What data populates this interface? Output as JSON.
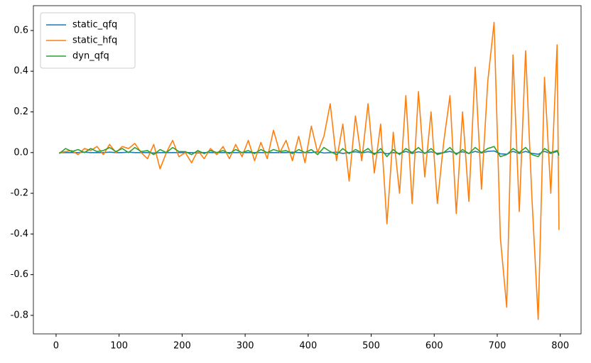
{
  "chart_data": {
    "type": "line",
    "x": [
      5,
      15,
      25,
      35,
      45,
      55,
      65,
      75,
      85,
      95,
      105,
      115,
      125,
      135,
      145,
      155,
      165,
      175,
      185,
      195,
      205,
      215,
      225,
      235,
      245,
      255,
      265,
      275,
      285,
      295,
      305,
      315,
      325,
      335,
      345,
      355,
      365,
      375,
      385,
      395,
      405,
      415,
      425,
      435,
      445,
      455,
      465,
      475,
      485,
      495,
      505,
      515,
      525,
      535,
      545,
      555,
      565,
      575,
      585,
      595,
      605,
      615,
      625,
      635,
      645,
      655,
      665,
      675,
      685,
      695,
      705,
      715,
      725,
      735,
      745,
      755,
      765,
      775,
      785,
      795,
      798
    ],
    "series": [
      {
        "name": "static_qfq",
        "color": "#1f77b4",
        "values": [
          0,
          0,
          0,
          0,
          0.002,
          0,
          0,
          0,
          0.002,
          0,
          0,
          0.002,
          0,
          0,
          0,
          -0.002,
          0,
          0,
          0,
          0,
          0,
          0,
          -0.002,
          0,
          0,
          0,
          0,
          0,
          0,
          0,
          0,
          0,
          0,
          0,
          0,
          0,
          0,
          0.002,
          0,
          0,
          0,
          0.004,
          -0.002,
          0,
          0.002,
          -0.004,
          0,
          0.004,
          -0.002,
          0.004,
          -0.004,
          0.002,
          -0.006,
          0,
          -0.004,
          0.006,
          -0.004,
          0.004,
          -0.002,
          0.004,
          -0.004,
          0,
          0.006,
          -0.004,
          0.004,
          -0.004,
          0.006,
          -0.002,
          0.006,
          0.008,
          -0.006,
          -0.008,
          0.006,
          -0.004,
          0.006,
          -0.004,
          -0.008,
          0.006,
          -0.004,
          0.006,
          -0.006
        ]
      },
      {
        "name": "static_hfq",
        "color": "#ff7f0e",
        "values": [
          0,
          0.005,
          0.01,
          -0.01,
          0.02,
          0.01,
          0.03,
          -0.01,
          0.04,
          0.0,
          0.03,
          0.02,
          0.045,
          0.0,
          -0.03,
          0.04,
          -0.08,
          0.0,
          0.06,
          -0.02,
          0.0,
          -0.05,
          0.01,
          -0.03,
          0.02,
          -0.01,
          0.03,
          -0.03,
          0.04,
          -0.02,
          0.06,
          -0.04,
          0.05,
          -0.03,
          0.11,
          0.0,
          0.06,
          -0.04,
          0.08,
          -0.05,
          0.13,
          0.0,
          0.08,
          0.24,
          -0.04,
          0.14,
          -0.14,
          0.18,
          -0.04,
          0.24,
          -0.1,
          0.14,
          -0.35,
          0.1,
          -0.2,
          0.28,
          -0.25,
          0.3,
          -0.12,
          0.2,
          -0.25,
          0.05,
          0.28,
          -0.3,
          0.2,
          -0.24,
          0.42,
          -0.18,
          0.35,
          0.64,
          -0.42,
          -0.76,
          0.48,
          -0.29,
          0.5,
          -0.22,
          -0.82,
          0.37,
          -0.2,
          0.53,
          -0.38
        ]
      },
      {
        "name": "dyn_qfq",
        "color": "#2ca02c",
        "values": [
          -0.005,
          0.02,
          0.005,
          0.015,
          0.0,
          0.02,
          0.005,
          0.01,
          0.025,
          0.005,
          0.02,
          0.0,
          0.025,
          0.005,
          0.01,
          -0.01,
          0.015,
          0.0,
          0.025,
          0.005,
          0.005,
          -0.01,
          0.01,
          -0.005,
          0.01,
          0.0,
          0.01,
          -0.005,
          0.015,
          0.0,
          0.01,
          -0.005,
          0.015,
          0.0,
          0.015,
          0.005,
          0.01,
          -0.005,
          0.015,
          0.0,
          0.015,
          -0.01,
          0.025,
          0.005,
          -0.01,
          0.02,
          -0.005,
          0.015,
          0.0,
          0.02,
          -0.01,
          0.02,
          -0.02,
          0.015,
          -0.01,
          0.02,
          0.0,
          0.025,
          -0.005,
          0.02,
          -0.01,
          0.0,
          0.025,
          -0.01,
          0.015,
          -0.005,
          0.025,
          0.0,
          0.02,
          0.03,
          -0.02,
          -0.01,
          0.02,
          0.0,
          0.025,
          -0.01,
          -0.02,
          0.02,
          0.0,
          0.01,
          -0.015
        ]
      }
    ],
    "xlim": [
      -36,
      833
    ],
    "ylim": [
      -0.891,
      0.722
    ],
    "xticks": [
      0,
      100,
      200,
      300,
      400,
      500,
      600,
      700,
      800
    ],
    "yticks": [
      -0.8,
      -0.6,
      -0.4,
      -0.2,
      {
        "value": 0,
        "label": "0.0"
      },
      0.2,
      0.4,
      0.6
    ],
    "legend": "upper left"
  }
}
